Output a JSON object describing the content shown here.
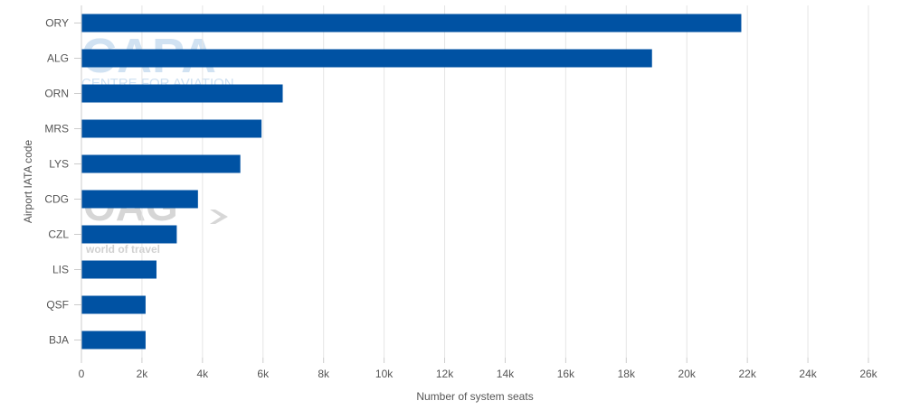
{
  "watermarks": {
    "capa_logo": "CAPA",
    "capa_subtitle": "CENTRE FOR AVIATION",
    "oag_logo": "OAG",
    "oag_subtitle": "world of travel"
  },
  "chart_data": {
    "type": "bar",
    "orientation": "horizontal",
    "categories": [
      "ORY",
      "ALG",
      "ORN",
      "MRS",
      "LYS",
      "CDG",
      "CZL",
      "LIS",
      "QSF",
      "BJA"
    ],
    "series": [
      {
        "values": [
          21800,
          18850,
          6650,
          5950,
          5250,
          3850,
          3150,
          2480,
          2120,
          2120
        ]
      }
    ],
    "xlabel": "Number of system seats",
    "ylabel": "Airport IATA code",
    "xlim": [
      0,
      26000
    ],
    "xticks": [
      0,
      2000,
      4000,
      6000,
      8000,
      10000,
      12000,
      14000,
      16000,
      18000,
      20000,
      22000,
      24000,
      26000
    ],
    "xtick_labels": [
      "0",
      "2k",
      "4k",
      "6k",
      "8k",
      "10k",
      "12k",
      "14k",
      "16k",
      "18k",
      "20k",
      "22k",
      "24k",
      "26k"
    ],
    "grid": "vertical",
    "legend": "none",
    "colors": {
      "bar": "#0052a3",
      "grid": "#e6e6e6",
      "axis": "#cccccc"
    }
  }
}
